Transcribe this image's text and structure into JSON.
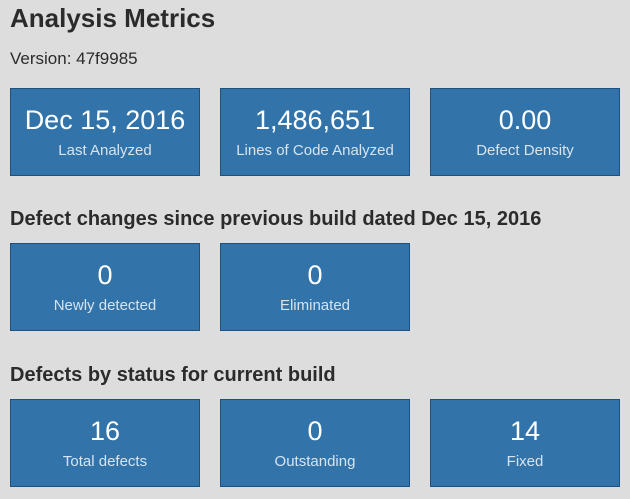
{
  "header": {
    "title": "Analysis Metrics",
    "version_label": "Version: 47f9985"
  },
  "summary": {
    "tiles": [
      {
        "value": "Dec 15, 2016",
        "label": "Last Analyzed"
      },
      {
        "value": "1,486,651",
        "label": "Lines of Code Analyzed"
      },
      {
        "value": "0.00",
        "label": "Defect Density"
      }
    ]
  },
  "changes": {
    "heading": "Defect changes since previous build dated Dec 15, 2016",
    "tiles": [
      {
        "value": "0",
        "label": "Newly detected"
      },
      {
        "value": "0",
        "label": "Eliminated"
      }
    ]
  },
  "status": {
    "heading": "Defects by status for current build",
    "tiles": [
      {
        "value": "16",
        "label": "Total defects"
      },
      {
        "value": "0",
        "label": "Outstanding"
      },
      {
        "value": "14",
        "label": "Fixed"
      }
    ]
  },
  "colors": {
    "tile_background": "#3274aa",
    "tile_border": "#1f5180",
    "page_background": "#dddddd",
    "text": "#2b2b2b"
  }
}
